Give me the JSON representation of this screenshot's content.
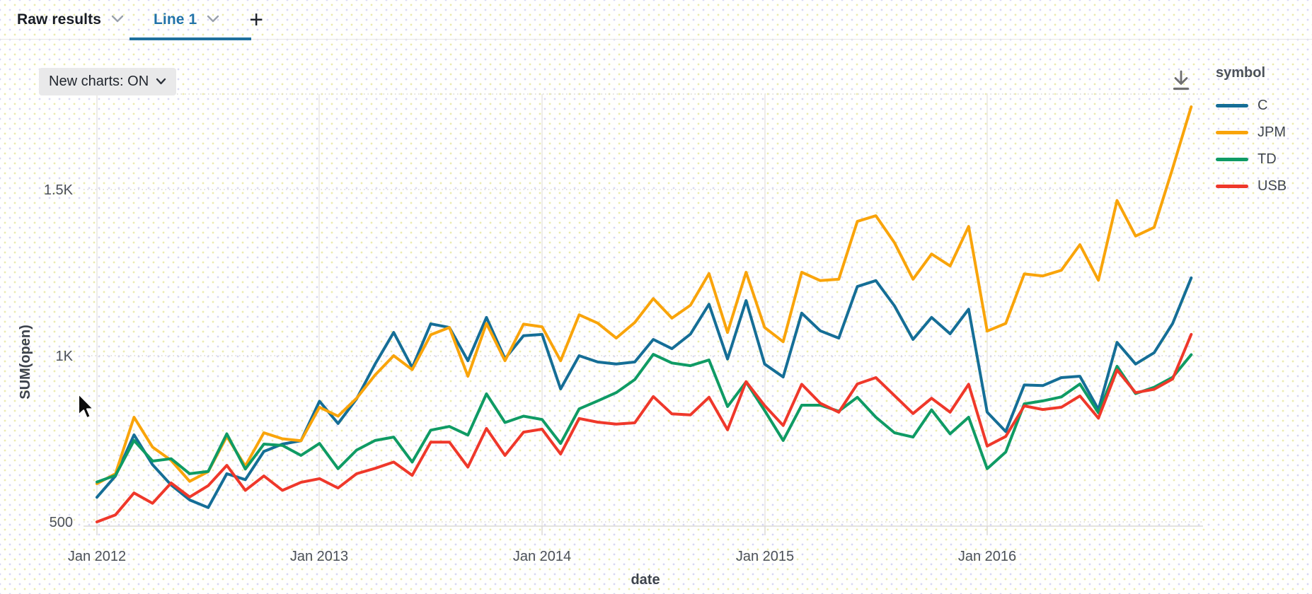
{
  "tab_bar": {
    "tabs": [
      {
        "label": "Raw results",
        "active": false
      },
      {
        "label": "Line 1",
        "active": true
      }
    ],
    "add_label": "+"
  },
  "toolbar": {
    "new_charts_label": "New charts: ON"
  },
  "legend": {
    "title": "symbol",
    "entries": [
      {
        "label": "C",
        "color": "#156e96"
      },
      {
        "label": "JPM",
        "color": "#f9a40a"
      },
      {
        "label": "TD",
        "color": "#0f9b64"
      },
      {
        "label": "USB",
        "color": "#ef382a"
      }
    ]
  },
  "theme": {
    "active_tab_color": "#2273a8",
    "tab_underline_color": "#1e6f9c",
    "chip_bg": "#e9e9ea",
    "gridline_color": "#e6e4e0",
    "tick_text_color": "#4b5058"
  },
  "icons": {
    "tab_chevrons": "chevron-down",
    "chip_chevron": "chevron-down",
    "download": "download-arrow"
  },
  "chart_data": {
    "type": "line",
    "xlabel": "date",
    "ylabel": "SUM(open)",
    "x_ticks": [
      "Jan 2012",
      "Jan 2013",
      "Jan 2014",
      "Jan 2015",
      "Jan 2016"
    ],
    "y_ticks": [
      {
        "label": "500",
        "value": 500
      },
      {
        "label": "1K",
        "value": 1000
      },
      {
        "label": "1.5K",
        "value": 1500
      }
    ],
    "x_range": {
      "start": "Jan 2012",
      "end": "Dec 2016",
      "interval": "month",
      "points": 60
    },
    "grid": {
      "vertical": "solid",
      "horizontal": "dotted"
    },
    "legend_position": "top-right",
    "series": [
      {
        "name": "C",
        "color": "#156e96",
        "values": [
          574,
          638,
          762,
          672,
          611,
          566,
          543,
          645,
          627,
          712,
          734,
          744,
          863,
          796,
          870,
          975,
          1070,
          964,
          1096,
          1085,
          985,
          1115,
          991,
          1060,
          1064,
          900,
          1000,
          981,
          975,
          981,
          1049,
          1021,
          1065,
          1155,
          990,
          1166,
          975,
          936,
          1128,
          1075,
          1053,
          1208,
          1226,
          1150,
          1049,
          1115,
          1066,
          1140,
          830,
          772,
          912,
          910,
          934,
          938,
          838,
          1040,
          975,
          1009,
          1097,
          1234
        ]
      },
      {
        "name": "JPM",
        "color": "#f9a40a",
        "values": [
          615,
          645,
          815,
          725,
          685,
          622,
          651,
          757,
          668,
          768,
          750,
          744,
          845,
          818,
          872,
          942,
          1000,
          958,
          1063,
          1085,
          938,
          1097,
          985,
          1095,
          1087,
          985,
          1123,
          1098,
          1053,
          1100,
          1172,
          1113,
          1152,
          1247,
          1070,
          1251,
          1085,
          1042,
          1251,
          1226,
          1230,
          1404,
          1421,
          1340,
          1230,
          1306,
          1270,
          1389,
          1074,
          1097,
          1246,
          1240,
          1257,
          1334,
          1227,
          1467,
          1360,
          1386,
          1564,
          1749
        ]
      },
      {
        "name": "TD",
        "color": "#0f9b64",
        "values": [
          620,
          640,
          745,
          683,
          690,
          645,
          652,
          765,
          659,
          734,
          730,
          700,
          736,
          660,
          716,
          745,
          755,
          680,
          776,
          787,
          761,
          885,
          799,
          818,
          808,
          736,
          840,
          864,
          889,
          928,
          1004,
          978,
          970,
          987,
          847,
          921,
          835,
          745,
          851,
          851,
          833,
          875,
          815,
          768,
          755,
          837,
          765,
          815,
          660,
          710,
          855,
          864,
          876,
          915,
          828,
          968,
          886,
          905,
          935,
          1003
        ]
      },
      {
        "name": "USB",
        "color": "#ef382a",
        "values": [
          500,
          521,
          587,
          556,
          617,
          575,
          609,
          670,
          595,
          638,
          595,
          619,
          630,
          602,
          645,
          661,
          680,
          640,
          740,
          740,
          665,
          781,
          700,
          770,
          779,
          704,
          811,
          800,
          794,
          798,
          877,
          825,
          822,
          875,
          777,
          922,
          850,
          790,
          914,
          857,
          830,
          915,
          934,
          880,
          826,
          872,
          830,
          914,
          728,
          757,
          849,
          838,
          845,
          879,
          812,
          957,
          889,
          899,
          930,
          1064
        ]
      }
    ]
  }
}
